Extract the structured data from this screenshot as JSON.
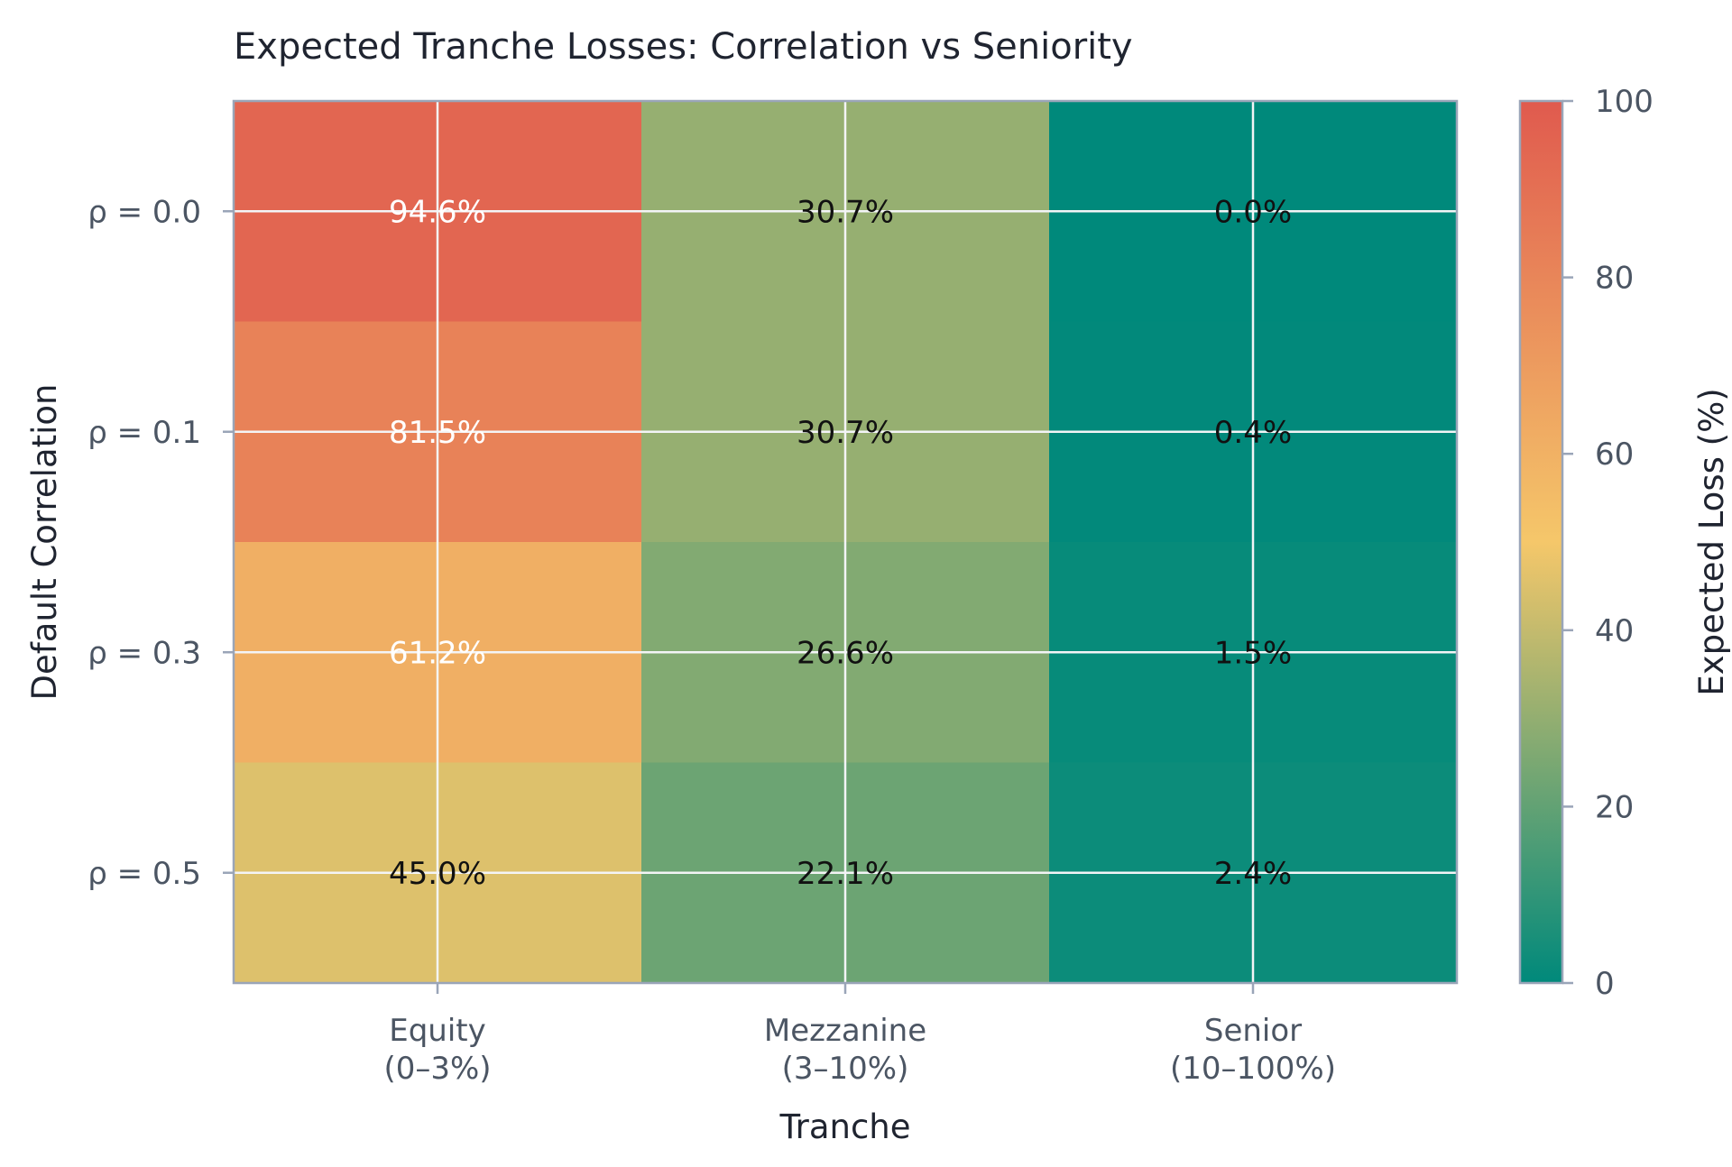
{
  "chart_data": {
    "type": "heatmap",
    "title": "Expected Tranche Losses: Correlation vs Seniority",
    "xlabel": "Tranche",
    "ylabel": "Default Correlation",
    "x_categories": [
      {
        "line1": "Equity",
        "line2": "(0–3%)"
      },
      {
        "line1": "Mezzanine",
        "line2": "(3–10%)"
      },
      {
        "line1": "Senior",
        "line2": "(10–100%)"
      }
    ],
    "y_categories": [
      "ρ = 0.0",
      "ρ = 0.1",
      "ρ = 0.3",
      "ρ = 0.5"
    ],
    "values": [
      [
        94.6,
        30.7,
        0.0
      ],
      [
        81.5,
        30.7,
        0.4
      ],
      [
        61.2,
        26.6,
        1.5
      ],
      [
        45.0,
        22.1,
        2.4
      ]
    ],
    "value_labels": [
      [
        "94.6%",
        "30.7%",
        "0.0%"
      ],
      [
        "81.5%",
        "30.7%",
        "0.4%"
      ],
      [
        "61.2%",
        "26.6%",
        "1.5%"
      ],
      [
        "45.0%",
        "22.1%",
        "2.4%"
      ]
    ],
    "colorbar": {
      "label": "Expected Loss (%)",
      "range": [
        0,
        100
      ],
      "ticks": [
        {
          "value": 0,
          "label": "0"
        },
        {
          "value": 20,
          "label": "20"
        },
        {
          "value": 40,
          "label": "40"
        },
        {
          "value": 60,
          "label": "60"
        },
        {
          "value": 80,
          "label": "80"
        },
        {
          "value": 100,
          "label": "100"
        }
      ],
      "colors": [
        "#00897b",
        "#f5c76a",
        "#e05a4e"
      ]
    },
    "grid": true,
    "colors": {
      "frame": "#9aa5b8",
      "grid": "#f3f4f6",
      "label_dark": "#111111",
      "label_light": "#ffffff"
    }
  }
}
